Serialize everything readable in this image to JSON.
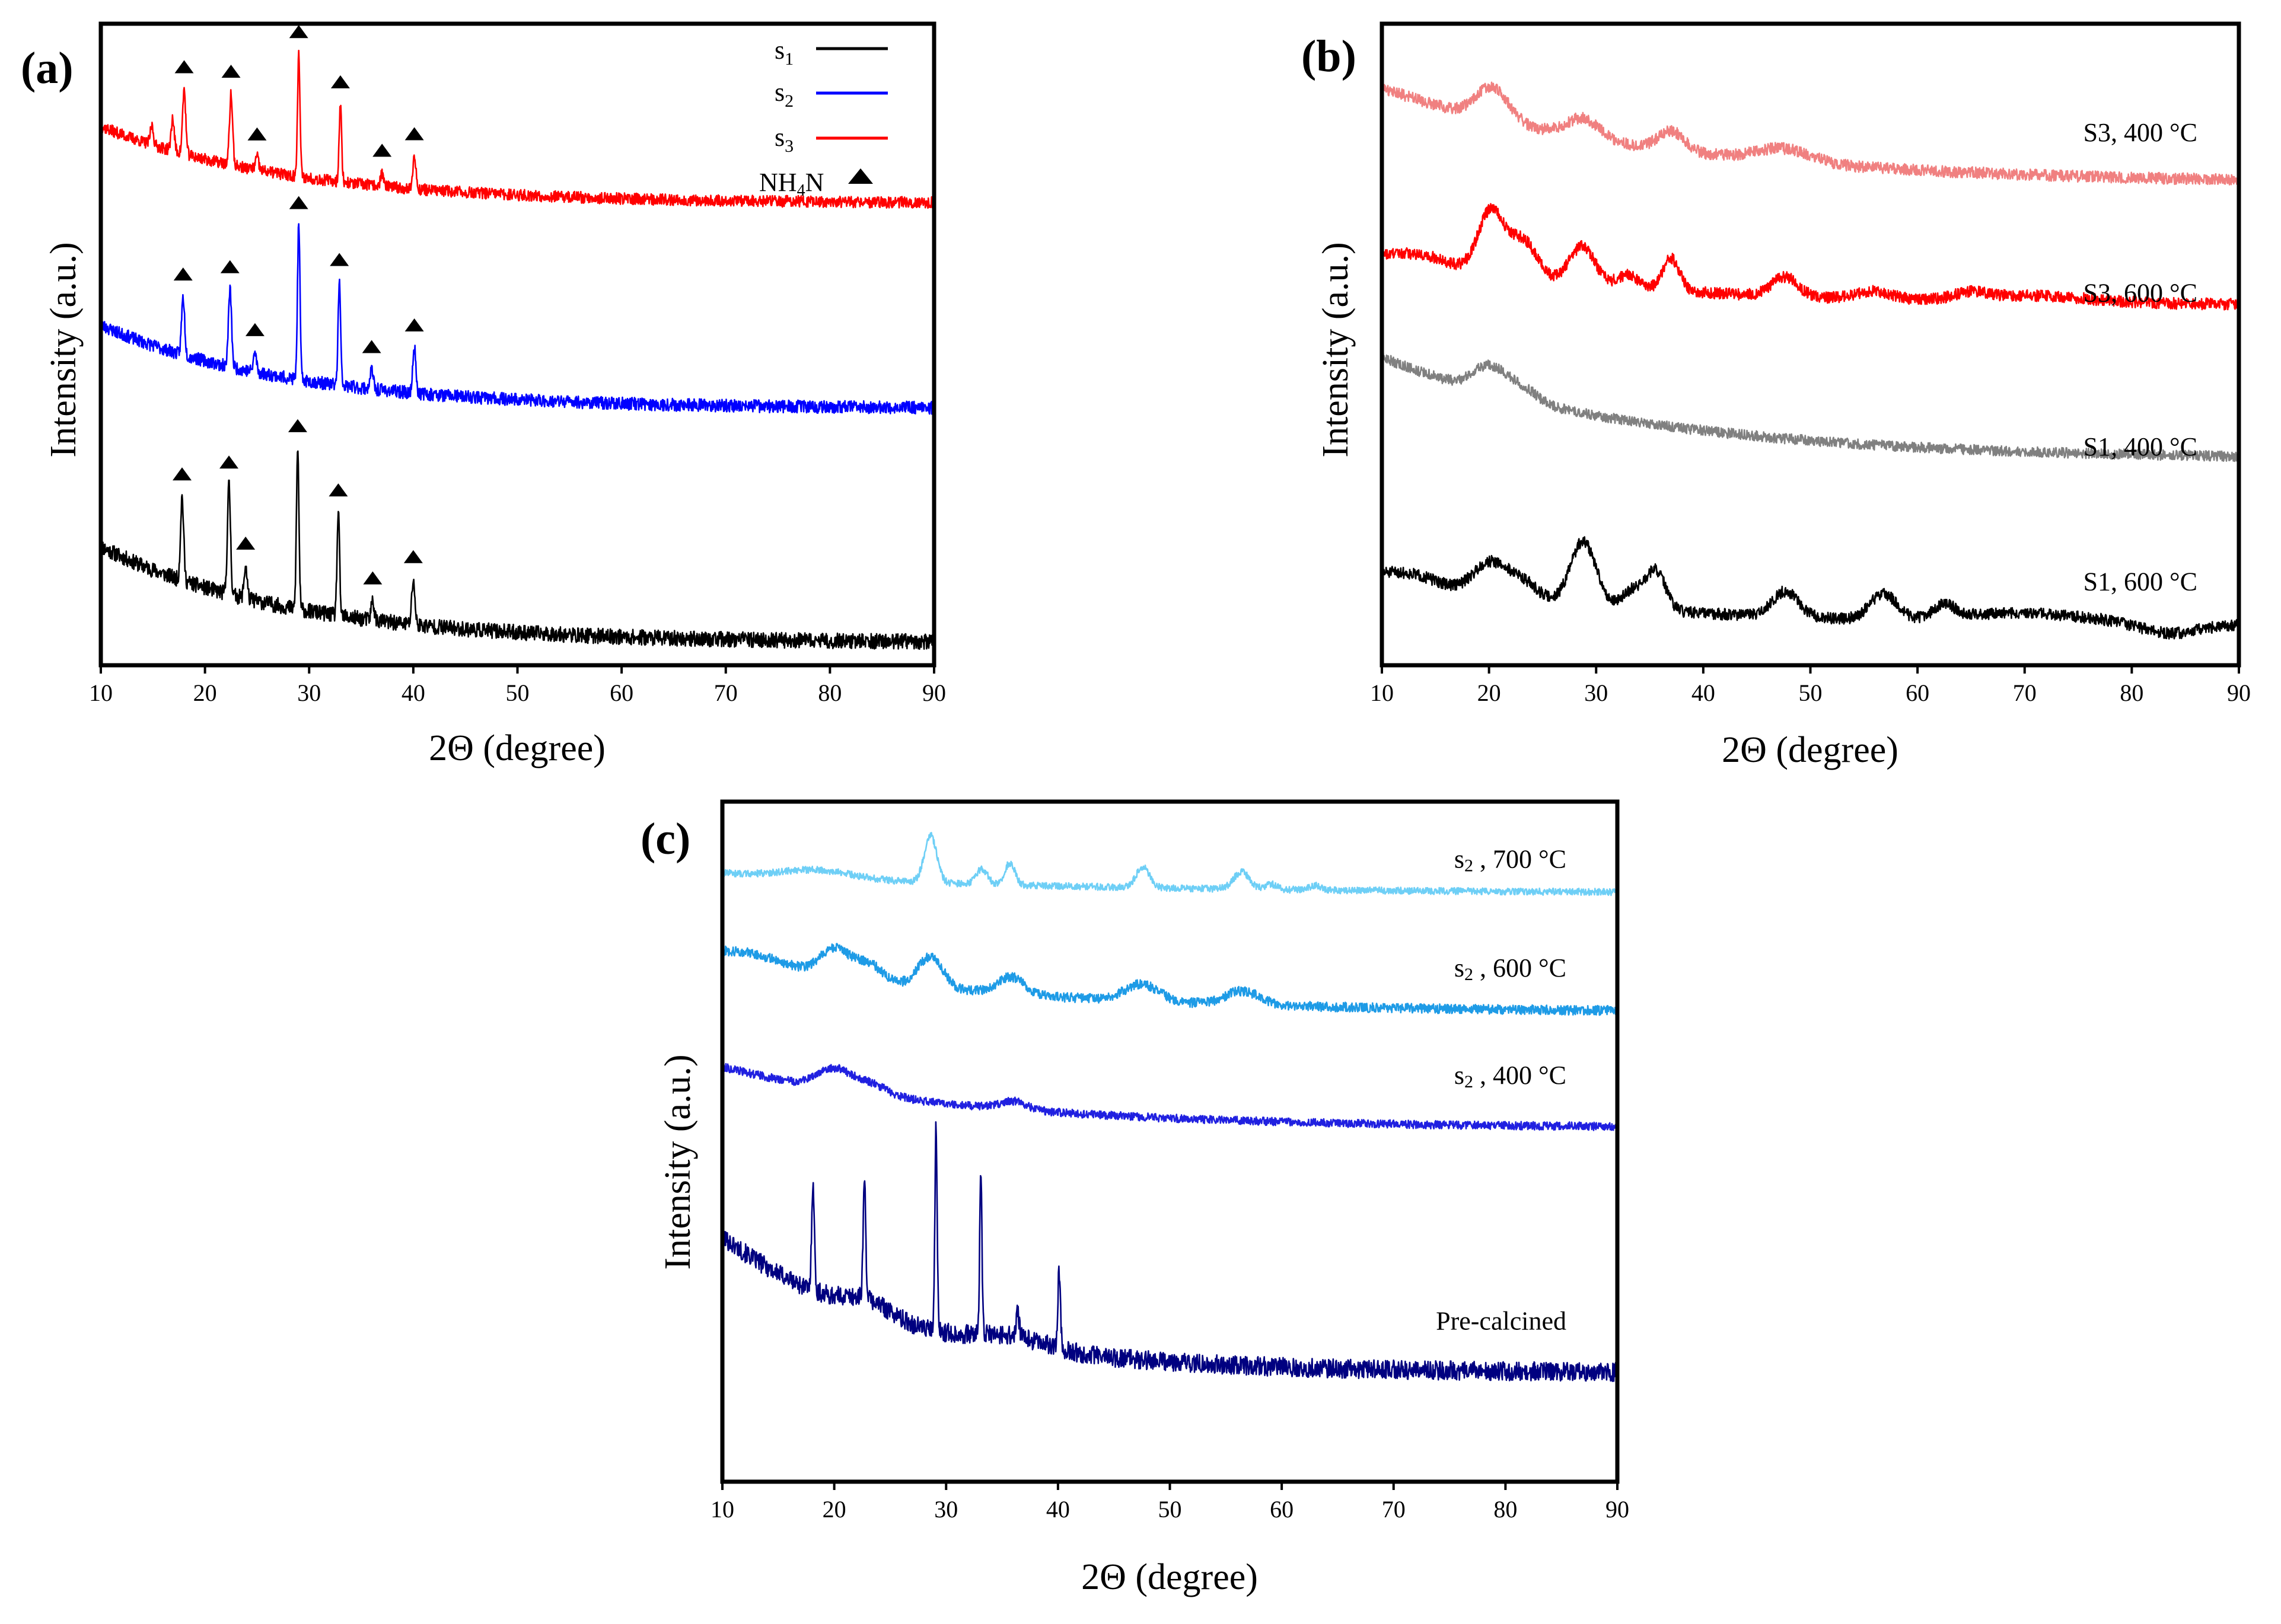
{
  "chart_data": [
    {
      "panel": "(a)",
      "type": "line",
      "xlabel": "2Θ (degree)",
      "ylabel": "Intensity (a.u.)",
      "xlim": [
        10,
        90
      ],
      "xticks": [
        10,
        20,
        30,
        40,
        50,
        60,
        70,
        80,
        90
      ],
      "yticks": "none",
      "grid": false,
      "legend_position": "top-right",
      "legend": [
        {
          "label": "s",
          "sub": "1",
          "color": "#000000",
          "kind": "line"
        },
        {
          "label": "s",
          "sub": "2",
          "color": "#0000ff",
          "kind": "line"
        },
        {
          "label": "s",
          "sub": "3",
          "color": "#ff0000",
          "kind": "line"
        },
        {
          "label": "NH",
          "sub": "4",
          "suffix": "N",
          "color": "#000000",
          "kind": "triangle"
        }
      ],
      "series": [
        {
          "name": "s1",
          "color": "#000000",
          "offset": 0.035,
          "start": 0.15,
          "decay": 18,
          "noise": 0.012,
          "seed": 11,
          "peaks": [
            [
              17.8,
              0.13,
              0.15
            ],
            [
              22.3,
              0.17,
              0.15
            ],
            [
              23.9,
              0.05,
              0.15
            ],
            [
              28.9,
              0.25,
              0.12
            ],
            [
              32.8,
              0.16,
              0.12
            ],
            [
              36.1,
              0.03,
              0.15
            ],
            [
              40.0,
              0.07,
              0.15
            ]
          ],
          "markers": [
            17.8,
            22.3,
            23.9,
            28.9,
            32.8,
            36.1,
            40.0
          ]
        },
        {
          "name": "s2",
          "color": "#0000ff",
          "offset": 0.4,
          "start": 0.13,
          "decay": 18,
          "noise": 0.01,
          "seed": 23,
          "peaks": [
            [
              17.9,
              0.09,
              0.15
            ],
            [
              22.4,
              0.12,
              0.15
            ],
            [
              24.8,
              0.03,
              0.15
            ],
            [
              29.0,
              0.24,
              0.12
            ],
            [
              32.9,
              0.16,
              0.12
            ],
            [
              36.0,
              0.03,
              0.15
            ],
            [
              40.1,
              0.07,
              0.15
            ]
          ],
          "markers": [
            17.9,
            22.4,
            24.8,
            29.0,
            32.9,
            36.0,
            40.1
          ]
        },
        {
          "name": "s3",
          "color": "#ff0000",
          "offset": 0.72,
          "start": 0.12,
          "decay": 18,
          "noise": 0.009,
          "seed": 37,
          "peaks": [
            [
              14.9,
              0.03,
              0.15
            ],
            [
              16.9,
              0.05,
              0.15
            ],
            [
              18.0,
              0.1,
              0.15
            ],
            [
              22.5,
              0.11,
              0.15
            ],
            [
              25.0,
              0.02,
              0.15
            ],
            [
              29.0,
              0.19,
              0.12
            ],
            [
              33.0,
              0.12,
              0.12
            ],
            [
              37.0,
              0.02,
              0.15
            ],
            [
              40.1,
              0.05,
              0.15
            ]
          ],
          "markers": [
            18.0,
            22.5,
            25.0,
            29.0,
            33.0,
            37.0,
            40.1
          ]
        }
      ]
    },
    {
      "panel": "(b)",
      "type": "line",
      "xlabel": "2Θ (degree)",
      "ylabel": "Intensity (a.u.)",
      "xlim": [
        10,
        90
      ],
      "xticks": [
        10,
        20,
        30,
        40,
        50,
        60,
        70,
        80,
        90
      ],
      "yticks": "none",
      "grid": false,
      "series": [
        {
          "name": "S1, 600 °C",
          "color": "#000000",
          "offset": 0.06,
          "start": 0.07,
          "decay": 25,
          "noise": 0.009,
          "seed": 51,
          "peaks": [
            [
              12.5,
              0.02,
              3
            ],
            [
              20.0,
              0.05,
              1.5
            ],
            [
              23.0,
              0.03,
              1.5
            ],
            [
              28.8,
              0.1,
              1.2
            ],
            [
              33.5,
              0.03,
              1.0
            ],
            [
              35.6,
              0.06,
              0.9
            ],
            [
              47.7,
              0.04,
              1.2
            ],
            [
              56.8,
              0.04,
              1.2
            ],
            [
              62.5,
              0.02,
              1.0
            ],
            [
              70,
              0.015,
              6
            ]
          ],
          "dips": [
            [
              83.5,
              0.015,
              2.5
            ]
          ]
        },
        {
          "name": "S1, 400 °C",
          "color": "#808080",
          "offset": 0.32,
          "start": 0.16,
          "decay": 24,
          "noise": 0.008,
          "seed": 63,
          "peaks": [
            [
              20.0,
              0.04,
              1.5
            ],
            [
              23.0,
              0.02,
              1.5
            ]
          ],
          "dips": []
        },
        {
          "name": "S3, 600 °C",
          "color": "#ff0000",
          "offset": 0.56,
          "start": 0.07,
          "decay": 25,
          "noise": 0.009,
          "seed": 75,
          "peaks": [
            [
              13.5,
              0.02,
              3
            ],
            [
              20.2,
              0.1,
              1.2
            ],
            [
              23.2,
              0.06,
              1.3
            ],
            [
              28.7,
              0.06,
              1.2
            ],
            [
              33.0,
              0.02,
              1.0
            ],
            [
              37.0,
              0.05,
              0.8
            ],
            [
              47.6,
              0.03,
              1.2
            ],
            [
              56,
              0.012,
              1.5
            ],
            [
              65,
              0.01,
              1.5
            ],
            [
              71,
              0.01,
              5
            ]
          ],
          "dips": []
        },
        {
          "name": "S3, 400 °C",
          "color": "#f08080",
          "offset": 0.75,
          "start": 0.15,
          "decay": 26,
          "noise": 0.009,
          "seed": 87,
          "peaks": [
            [
              20.3,
              0.05,
              1.5
            ],
            [
              28.8,
              0.03,
              1.5
            ],
            [
              37.0,
              0.03,
              1.2
            ],
            [
              47.5,
              0.02,
              2.5
            ]
          ],
          "dips": []
        }
      ],
      "labels": [
        {
          "text": "S3, 400 °C",
          "y": 0.83
        },
        {
          "text": "S3, 600 °C",
          "y": 0.58
        },
        {
          "text": "S1, 400 °C",
          "y": 0.34
        },
        {
          "text": "S1, 600 °C",
          "y": 0.13
        }
      ]
    },
    {
      "panel": "(c)",
      "type": "line",
      "xlabel": "2Θ (degree)",
      "ylabel": "Intensity (a.u.)",
      "xlim": [
        10,
        90
      ],
      "xticks": [
        10,
        20,
        30,
        40,
        50,
        60,
        70,
        80,
        90
      ],
      "yticks": "none",
      "grid": false,
      "series": [
        {
          "name": "Pre-calcined",
          "color": "#000080",
          "offset": 0.16,
          "start": 0.2,
          "decay": 16,
          "noise": 0.014,
          "seed": 101,
          "peaks": [
            [
              18.1,
              0.16,
              0.12
            ],
            [
              22.7,
              0.17,
              0.12
            ],
            [
              29.1,
              0.3,
              0.1
            ],
            [
              33.1,
              0.24,
              0.1
            ],
            [
              36.4,
              0.04,
              0.12
            ],
            [
              40.1,
              0.11,
              0.12
            ],
            [
              23,
              0.02,
              2
            ],
            [
              36,
              0.015,
              3
            ]
          ],
          "dips": []
        },
        {
          "name": "s2, 400 °C",
          "color": "#2020e0",
          "offset": 0.52,
          "start": 0.09,
          "decay": 22,
          "noise": 0.006,
          "seed": 113,
          "peaks": [
            [
              20.0,
              0.03,
              1.5
            ],
            [
              23.3,
              0.015,
              1.5
            ],
            [
              36.0,
              0.012,
              1.2
            ]
          ],
          "dips": []
        },
        {
          "name": "s2, 600 °C",
          "color": "#1e9be6",
          "offset": 0.69,
          "start": 0.08,
          "decay": 24,
          "noise": 0.007,
          "seed": 127,
          "peaks": [
            [
              12.5,
              0.015,
              3
            ],
            [
              20.0,
              0.04,
              1.3
            ],
            [
              23.0,
              0.025,
              1.3
            ],
            [
              28.6,
              0.045,
              1.1
            ],
            [
              35.8,
              0.025,
              1.2
            ],
            [
              47.5,
              0.025,
              1.5
            ],
            [
              56.5,
              0.02,
              1.5
            ]
          ],
          "dips": []
        },
        {
          "name": "s2, 700 °C",
          "color": "#6ecff6",
          "offset": 0.865,
          "start": 0.03,
          "decay": 30,
          "noise": 0.005,
          "seed": 139,
          "peaks": [
            [
              18.5,
              0.012,
              3
            ],
            [
              28.6,
              0.07,
              0.55
            ],
            [
              33.2,
              0.022,
              0.5
            ],
            [
              35.7,
              0.032,
              0.45
            ],
            [
              47.6,
              0.03,
              0.6
            ],
            [
              56.4,
              0.025,
              0.7
            ],
            [
              59,
              0.008,
              0.5
            ],
            [
              63,
              0.007,
              0.5
            ]
          ],
          "dips": []
        }
      ],
      "labels": [
        {
          "text": "s",
          "sub": "2",
          "suffix": " , 700 °C",
          "y": 0.915
        },
        {
          "text": "s",
          "sub": "2",
          "suffix": " , 600 °C",
          "y": 0.755
        },
        {
          "text": "s",
          "sub": "2",
          "suffix": " , 400 °C",
          "y": 0.597
        },
        {
          "text": "Pre-calcined",
          "y": 0.236
        }
      ]
    }
  ]
}
